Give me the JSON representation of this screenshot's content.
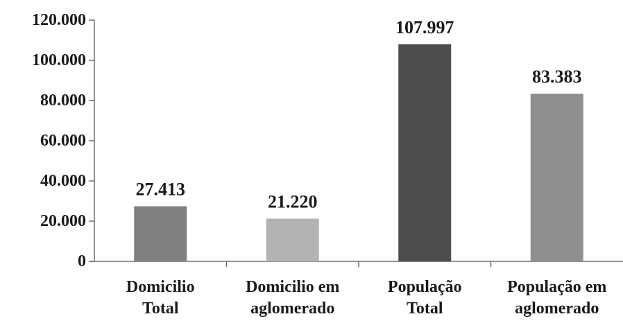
{
  "chart_data": {
    "type": "bar",
    "title": "",
    "xlabel": "",
    "ylabel": "",
    "categories": [
      [
        "Domicilio",
        "Total"
      ],
      [
        "Domicilio em",
        "aglomerado"
      ],
      [
        "População",
        "Total"
      ],
      [
        "População em",
        "aglomerado"
      ]
    ],
    "values": [
      27413,
      21220,
      107997,
      83383
    ],
    "value_labels": [
      "27.413",
      "21.220",
      "107.997",
      "83.383"
    ],
    "bar_colors": [
      "#808080",
      "#b3b3b3",
      "#4d4d4d",
      "#8f8f8f"
    ],
    "ylim": [
      0,
      120000
    ],
    "yticks": [
      0,
      20000,
      40000,
      60000,
      80000,
      100000,
      120000
    ],
    "ytick_labels": [
      "0",
      "20.000",
      "40.000",
      "60.000",
      "80.000",
      "100.000",
      "120.000"
    ],
    "grid": false,
    "legend": "none"
  }
}
